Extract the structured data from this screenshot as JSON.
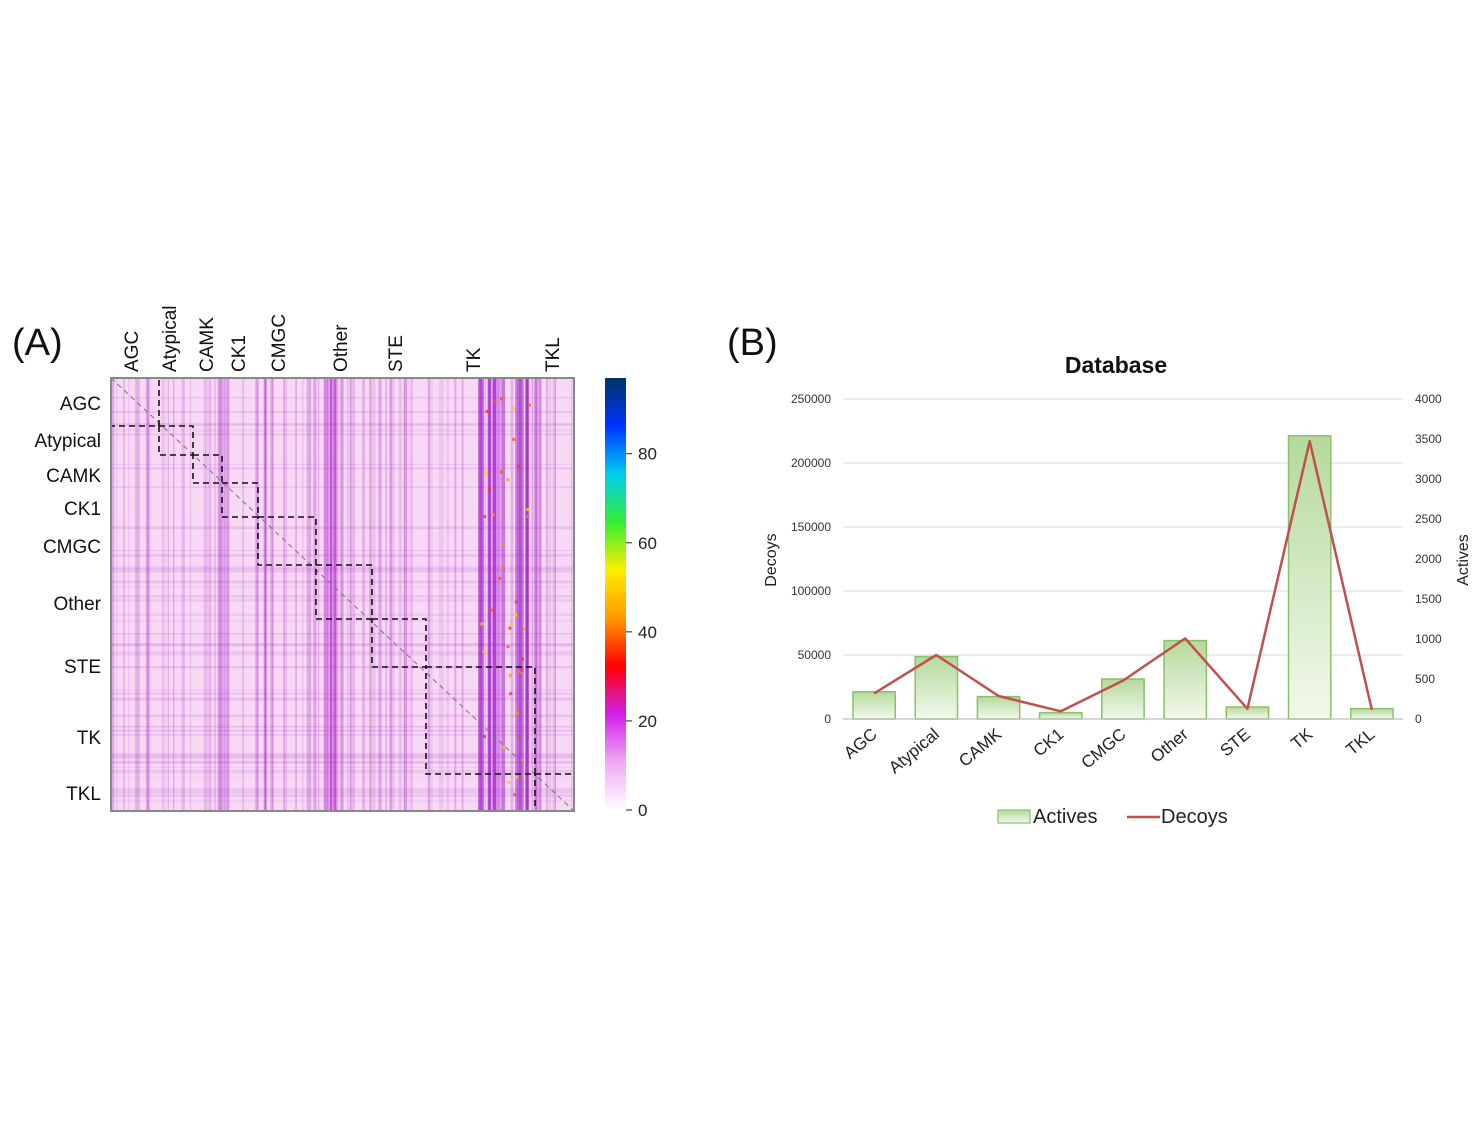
{
  "panel_a": {
    "label": "(A)",
    "families": [
      "AGC",
      "Atypical",
      "CAMK",
      "CK1",
      "CMGC",
      "Other",
      "STE",
      "TK",
      "TKL"
    ],
    "colorbar": {
      "ticks": [
        0,
        20,
        40,
        60,
        80
      ],
      "max": 97,
      "colormap": [
        "#ffffff",
        "#f0a8f5",
        "#d020e8",
        "#ff0000",
        "#ff9900",
        "#ffee00",
        "#33ee33",
        "#00ccee",
        "#0033ff",
        "#003366"
      ]
    },
    "matrix_color": "#f7d8f5",
    "hot_color": "#a020c0"
  },
  "panel_b": {
    "label": "(B)",
    "legend": [
      "Actives",
      "Decoys"
    ]
  },
  "chart_data": [
    {
      "type": "heatmap",
      "title": "",
      "row_groups": [
        "AGC",
        "Atypical",
        "CAMK",
        "CK1",
        "CMGC",
        "Other",
        "STE",
        "TK",
        "TKL"
      ],
      "col_groups": [
        "AGC",
        "Atypical",
        "CAMK",
        "CK1",
        "CMGC",
        "Other",
        "STE",
        "TK",
        "TKL"
      ],
      "value_range": [
        0,
        97
      ],
      "colorbar_ticks": [
        0,
        20,
        40,
        60,
        80
      ],
      "diagonal_blocks": "dashed boxes mark each family block along the diagonal"
    },
    {
      "type": "bar",
      "title": "Database",
      "categories": [
        "AGC",
        "Atypical",
        "CAMK",
        "CK1",
        "CMGC",
        "Other",
        "STE",
        "TK",
        "TKL"
      ],
      "series": [
        {
          "name": "Actives",
          "type": "bar",
          "axis": "right",
          "values": [
            340,
            780,
            280,
            80,
            500,
            980,
            150,
            3540,
            130
          ],
          "color": "#d8ecc8",
          "edge": "#8cc068"
        },
        {
          "name": "Decoys",
          "type": "line",
          "axis": "left",
          "values": [
            20000,
            50000,
            18000,
            6000,
            30000,
            63000,
            8000,
            217000,
            7000
          ],
          "color": "#c0504d"
        }
      ],
      "ylabel": "Decoys",
      "ylim": [
        0,
        250000
      ],
      "yticks": [
        0,
        50000,
        100000,
        150000,
        200000,
        250000
      ],
      "y2label": "Actives",
      "y2lim": [
        0,
        4000
      ],
      "y2ticks": [
        0,
        500,
        1000,
        1500,
        2000,
        2500,
        3000,
        3500,
        4000
      ],
      "grid": true,
      "legend": "bottom"
    }
  ]
}
